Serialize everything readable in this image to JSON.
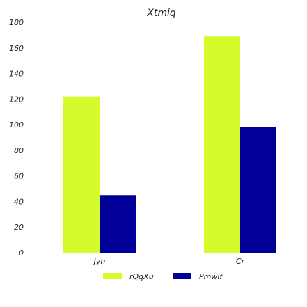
{
  "chart_data": {
    "type": "bar",
    "title": "Xtmiq",
    "xlabel": "",
    "ylabel": "",
    "categories": [
      "Jyn",
      "Cr"
    ],
    "series": [
      {
        "name": "rQqXu",
        "values": [
          122,
          169
        ],
        "color": "#d4fc2c"
      },
      {
        "name": "Pmwlf",
        "values": [
          45,
          98
        ],
        "color": "#000099"
      }
    ],
    "ylim": [
      0,
      180
    ],
    "yticks": [
      0,
      20,
      40,
      60,
      80,
      100,
      120,
      140,
      160,
      180
    ],
    "grid": false,
    "legend_position": "bottom-center"
  }
}
